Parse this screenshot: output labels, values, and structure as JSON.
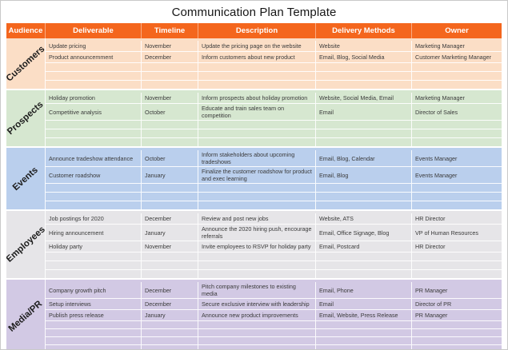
{
  "title": "Communication Plan Template",
  "colors": {
    "header_bg": "#F4661D",
    "header_text": "#FFFFFF",
    "customers_bg": "#FBDEC6",
    "prospects_bg": "#D6E7D0",
    "events_bg": "#BACFED",
    "employees_bg": "#E6E5E8",
    "media_pr_bg": "#D2C9E4"
  },
  "columns": [
    "Audience",
    "Deliverable",
    "Timeline",
    "Description",
    "Delivery Methods",
    "Owner"
  ],
  "sections": [
    {
      "audience": "Customers",
      "color": "#FBDEC6",
      "rows": [
        [
          "Update pricing",
          "November",
          "Update the pricing page on the website",
          "Website",
          "Marketing Manager"
        ],
        [
          "Product announcemment",
          "December",
          "Inform customers about new product",
          "Email, Blog, Social Media",
          "Customer Marketing Manager"
        ]
      ],
      "empty_rows": 3
    },
    {
      "audience": "Prospects",
      "color": "#D6E7D0",
      "rows": [
        [
          "Holiday promotion",
          "November",
          "Inform prospects about holiday promotion",
          "Website, Social Media, Email",
          "Marketing Manager"
        ],
        [
          "Competitive analysis",
          "October",
          "Educate and train sales team on competition",
          "Email",
          "Director of Sales"
        ]
      ],
      "empty_rows": 3
    },
    {
      "audience": "Events",
      "color": "#BACFED",
      "rows": [
        [
          "Announce tradeshow attendance",
          "October",
          "Inform stakeholders about upcoming tradeshows",
          "Email, Blog, Calendar",
          "Events Manager"
        ],
        [
          "Customer roadshow",
          "January",
          "Finalize the customer roadshow for product and exec learning",
          "Email, Blog",
          "Events Manager"
        ]
      ],
      "empty_rows": 3
    },
    {
      "audience": "Employees",
      "color": "#E6E5E8",
      "rows": [
        [
          "Job postings for 2020",
          "December",
          "Review and post new jobs",
          "Website, ATS",
          "HR Director"
        ],
        [
          "Hiring announcement",
          "January",
          "Announce the 2020 hiring push, encourage referrals",
          "Email, Office Signage, Blog",
          "VP of Human Resources"
        ],
        [
          "Holiday party",
          "November",
          "Invite employees to RSVP for holiday party",
          "Email, Postcard",
          "HR Director"
        ]
      ],
      "empty_rows": 3
    },
    {
      "audience": "Media/PR",
      "color": "#D2C9E4",
      "rows": [
        [
          "Company growth pitch",
          "December",
          "Pitch company milestones to existing media",
          "Email, Phone",
          "PR Manager"
        ],
        [
          "Setup interviews",
          "December",
          "Secure exclusive interview with leadership",
          "Email",
          "Director of PR"
        ],
        [
          "Publish press release",
          "January",
          "Announce new product improvements",
          "Email, Website, Press Release",
          "PR Manager"
        ]
      ],
      "empty_rows": 4
    }
  ]
}
